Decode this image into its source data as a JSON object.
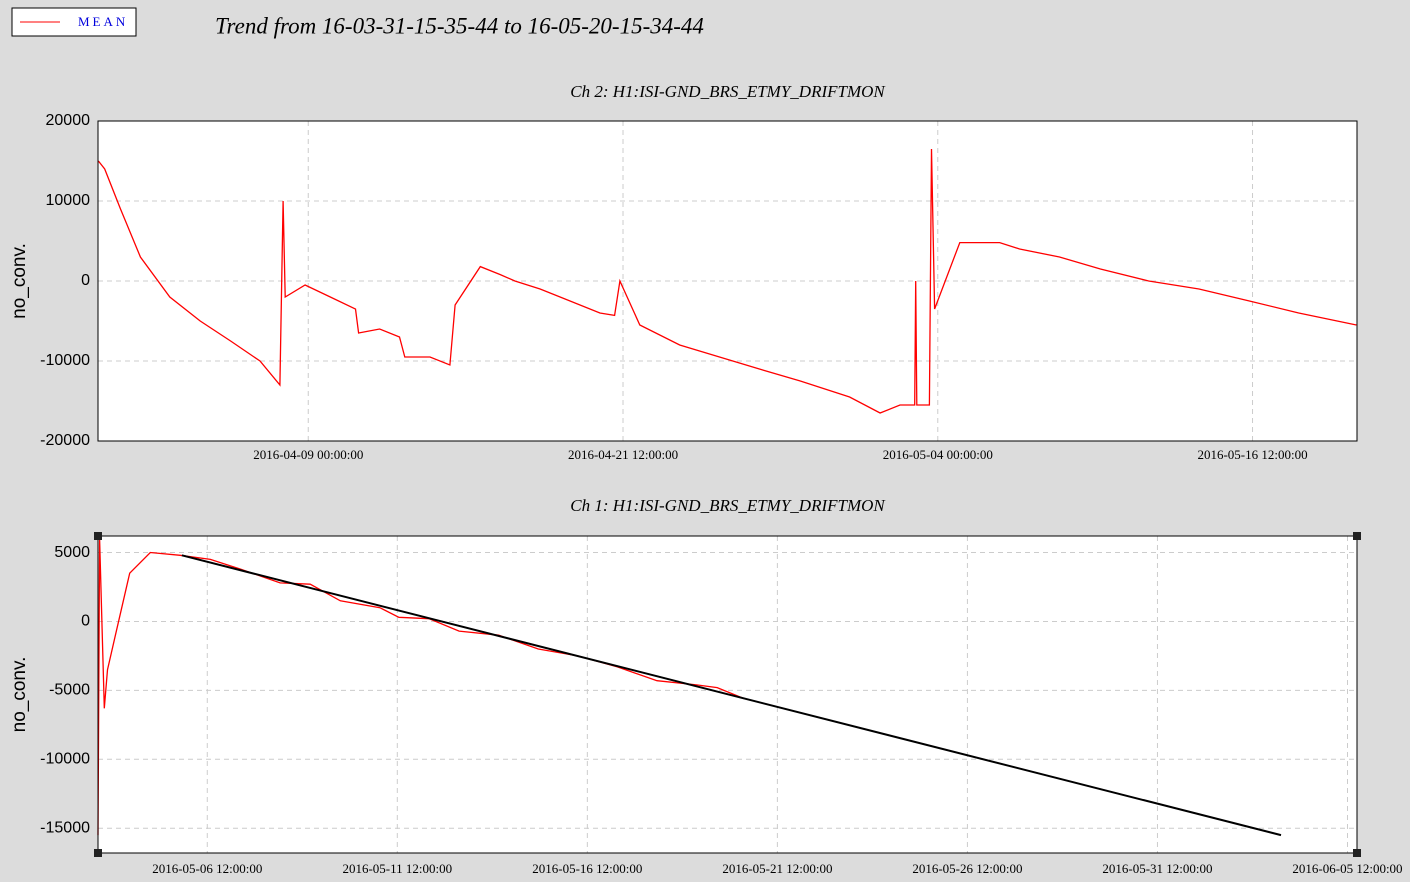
{
  "title": "Trend from 16-03-31-15-35-44 to 16-05-20-15-34-44",
  "chart_data": [
    {
      "type": "line",
      "title": "Ch 2: H1:ISI-GND_BRS_ETMY_DRIFTMON",
      "y_label": "no_conv.",
      "xlim": [
        "2016-03-31 15:35:44",
        "2016-05-20 15:34:44"
      ],
      "xticks": [
        "2016-04-09 00:00:00",
        "2016-04-21 12:00:00",
        "2016-05-04 00:00:00",
        "2016-05-16 12:00:00"
      ],
      "ylim": [
        -20000,
        20000
      ],
      "yticks": [
        -20000,
        -10000,
        0,
        10000,
        20000
      ],
      "grid": true,
      "series": [
        {
          "name": "MEAN",
          "color": "#ff0000",
          "x": [
            "2016-03-31 16:00:00",
            "2016-03-31 22:00:00",
            "2016-04-01 13:00:00",
            "2016-04-02 08:00:00",
            "2016-04-03 12:00:00",
            "2016-04-04 17:00:00",
            "2016-04-05 22:00:00",
            "2016-04-07 02:00:00",
            "2016-04-07 21:00:00",
            "2016-04-08 00:00:00",
            "2016-04-08 02:00:00",
            "2016-04-08 21:00:00",
            "2016-04-09 21:00:00",
            "2016-04-10 21:00:00",
            "2016-04-11 00:00:00",
            "2016-04-11 20:00:00",
            "2016-04-12 15:00:00",
            "2016-04-12 20:00:00",
            "2016-04-13 20:00:00",
            "2016-04-14 15:00:00",
            "2016-04-14 20:00:00",
            "2016-04-15 20:00:00",
            "2016-04-16 15:00:00",
            "2016-04-17 05:00:00",
            "2016-04-18 05:00:00",
            "2016-04-19 00:00:00",
            "2016-04-20 14:00:00",
            "2016-04-21 04:00:00",
            "2016-04-21 09:00:00",
            "2016-04-22 04:00:00",
            "2016-04-23 18:00:00",
            "2016-04-25 08:00:00",
            "2016-04-26 22:00:00",
            "2016-04-28 13:00:00",
            "2016-04-30 12:00:00",
            "2016-05-01 17:00:00",
            "2016-05-02 12:00:00",
            "2016-05-03 02:00:00",
            "2016-05-03 03:00:00",
            "2016-05-03 04:00:00",
            "2016-05-03 16:00:00",
            "2016-05-03 18:00:00",
            "2016-05-03 21:00:00",
            "2016-05-04 21:00:00",
            "2016-05-06 11:00:00",
            "2016-05-07 06:00:00",
            "2016-05-08 20:00:00",
            "2016-05-10 11:00:00",
            "2016-05-12 09:00:00",
            "2016-05-14 09:00:00",
            "2016-05-16 09:00:00",
            "2016-05-18 08:00:00",
            "2016-05-20 15:00:00"
          ],
          "values": [
            15000,
            14000,
            9000,
            3000,
            -2000,
            -5000,
            -7500,
            -10000,
            -13000,
            10000,
            -2000,
            -500,
            -2000,
            -3500,
            -6500,
            -6000,
            -7000,
            -9500,
            -9500,
            -10500,
            -3000,
            1800,
            800,
            0,
            -1000,
            -2000,
            -4000,
            -4300,
            0,
            -5500,
            -8000,
            -9500,
            -11000,
            -12500,
            -14500,
            -16500,
            -15500,
            -15500,
            0,
            -15500,
            -15500,
            16500,
            -3500,
            4800,
            4800,
            4000,
            3000,
            1500,
            0,
            -1000,
            -2500,
            -4000,
            -5500
          ]
        }
      ]
    },
    {
      "type": "line",
      "title": "Ch 1: H1:ISI-GND_BRS_ETMY_DRIFTMON",
      "y_label": "no_conv.",
      "xlim": [
        "2016-05-03 15:00:00",
        "2016-06-05 18:00:00"
      ],
      "xticks": [
        "2016-05-06 12:00:00",
        "2016-05-11 12:00:00",
        "2016-05-16 12:00:00",
        "2016-05-21 12:00:00",
        "2016-05-26 12:00:00",
        "2016-05-31 12:00:00",
        "2016-06-05 12:00:00"
      ],
      "ylim": [
        -16800,
        6200
      ],
      "yticks": [
        -15000,
        -10000,
        -5000,
        0,
        5000
      ],
      "grid": true,
      "series": [
        {
          "name": "MEAN",
          "color": "#ff0000",
          "x": [
            "2016-05-03 15:00:00",
            "2016-05-03 16:00:00",
            "2016-05-03 19:00:00",
            "2016-05-03 21:00:00",
            "2016-05-04 02:00:00",
            "2016-05-04 11:00:00",
            "2016-05-05 00:00:00",
            "2016-05-05 19:00:00",
            "2016-05-06 14:00:00",
            "2016-05-07 09:00:00",
            "2016-05-08 10:00:00",
            "2016-05-09 05:00:00",
            "2016-05-10 00:00:00",
            "2016-05-11 01:00:00",
            "2016-05-11 13:00:00",
            "2016-05-12 08:00:00",
            "2016-05-13 03:00:00",
            "2016-05-14 04:00:00",
            "2016-05-15 05:00:00",
            "2016-05-16 06:00:00",
            "2016-05-17 07:00:00",
            "2016-05-18 08:00:00",
            "2016-05-19 09:00:00",
            "2016-05-19 22:00:00",
            "2016-05-20 15:00:00"
          ],
          "values": [
            -15500,
            6000,
            -6300,
            -3500,
            -1000,
            3500,
            5000,
            4800,
            4500,
            3800,
            2800,
            2700,
            1500,
            1000,
            300,
            200,
            -700,
            -1000,
            -2000,
            -2500,
            -3300,
            -4300,
            -4600,
            -4800,
            -5600
          ]
        },
        {
          "color": "#000000",
          "x": [
            "2016-05-05 20:00:00",
            "2016-06-03 18:00:00"
          ],
          "values": [
            4800,
            -15500
          ]
        }
      ]
    }
  ]
}
